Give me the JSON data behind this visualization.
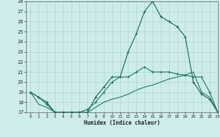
{
  "xlabel": "Humidex (Indice chaleur)",
  "x": [
    0,
    1,
    2,
    3,
    4,
    5,
    6,
    7,
    8,
    9,
    10,
    11,
    12,
    13,
    14,
    15,
    16,
    17,
    18,
    19,
    20,
    21,
    22,
    23
  ],
  "y_main": [
    19,
    18.5,
    18,
    17,
    17,
    17,
    17,
    17,
    18.5,
    19.5,
    20.5,
    20.5,
    23,
    24.8,
    27,
    28,
    26.5,
    26,
    25.5,
    24.5,
    20,
    18.8,
    18.3,
    17
  ],
  "y_upper": [
    19,
    18.5,
    17.8,
    17,
    17,
    17,
    17,
    17.3,
    18,
    19,
    20,
    20.5,
    20.5,
    21,
    21.5,
    21,
    21,
    21,
    20.8,
    20.7,
    20.5,
    20.5,
    19,
    17
  ],
  "y_lower": [
    19,
    17.8,
    17.5,
    17,
    17,
    17,
    17,
    17,
    17.5,
    18,
    18.3,
    18.5,
    18.8,
    19.2,
    19.5,
    19.7,
    20,
    20.3,
    20.5,
    20.7,
    21,
    19,
    18.5,
    17
  ],
  "bg_color": "#cdecea",
  "grid_color": "#aed4d1",
  "line_color": "#1a6e64",
  "ylim": [
    17,
    28
  ],
  "xlim": [
    -0.5,
    23
  ],
  "yticks": [
    17,
    18,
    19,
    20,
    21,
    22,
    23,
    24,
    25,
    26,
    27,
    28
  ],
  "xticks": [
    0,
    1,
    2,
    3,
    4,
    5,
    6,
    7,
    8,
    9,
    10,
    11,
    12,
    13,
    14,
    15,
    16,
    17,
    18,
    19,
    20,
    21,
    22,
    23
  ]
}
